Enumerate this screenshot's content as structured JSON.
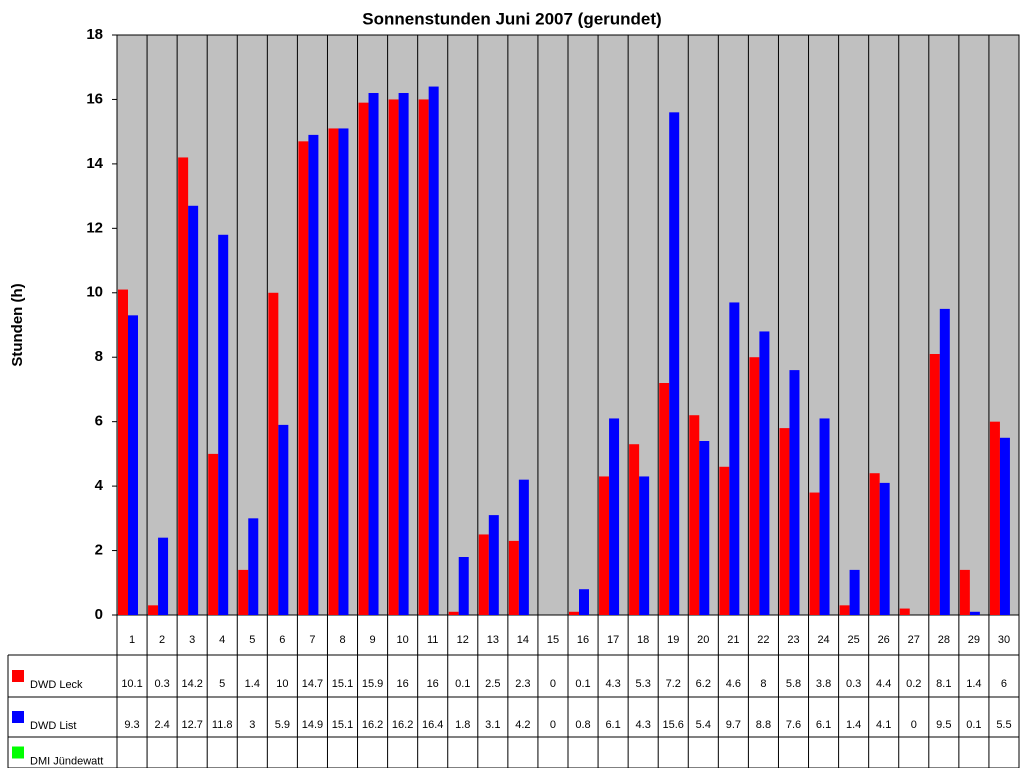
{
  "chart_data": {
    "type": "bar",
    "title": "Sonnenstunden Juni 2007 (gerundet)",
    "y_label": "Stunden (h)",
    "categories": [
      "1",
      "2",
      "3",
      "4",
      "5",
      "6",
      "7",
      "8",
      "9",
      "10",
      "11",
      "12",
      "13",
      "14",
      "15",
      "16",
      "17",
      "18",
      "19",
      "20",
      "21",
      "22",
      "23",
      "24",
      "25",
      "26",
      "27",
      "28",
      "29",
      "30"
    ],
    "series": [
      {
        "name": "DWD Leck",
        "color": "#ff0000",
        "values": [
          10.1,
          0.3,
          14.2,
          5,
          1.4,
          10,
          14.7,
          15.1,
          15.9,
          16,
          16,
          0.1,
          2.5,
          2.3,
          0,
          0.1,
          4.3,
          5.3,
          7.2,
          6.2,
          4.6,
          8,
          5.8,
          3.8,
          0.3,
          4.4,
          0.2,
          8.1,
          1.4,
          6
        ]
      },
      {
        "name": "DWD List",
        "color": "#0000ff",
        "values": [
          9.3,
          2.4,
          12.7,
          11.8,
          3,
          5.9,
          14.9,
          15.1,
          16.2,
          16.2,
          16.4,
          1.8,
          3.1,
          4.2,
          0,
          0.8,
          6.1,
          4.3,
          15.6,
          5.4,
          9.7,
          8.8,
          7.6,
          6.1,
          1.4,
          4.1,
          0,
          9.5,
          0.1,
          5.5
        ]
      },
      {
        "name": "DMI Jündewatt",
        "color": "#00ff00",
        "values": [
          null,
          null,
          null,
          null,
          null,
          null,
          null,
          null,
          null,
          null,
          null,
          null,
          null,
          null,
          null,
          null,
          null,
          null,
          null,
          null,
          null,
          null,
          null,
          null,
          null,
          null,
          null,
          null,
          null,
          null
        ]
      }
    ],
    "ylim": [
      0,
      18
    ],
    "yticks": [
      0,
      2,
      4,
      6,
      8,
      10,
      12,
      14,
      16,
      18
    ],
    "plot_background": "#c0c0c0",
    "grid": true
  }
}
